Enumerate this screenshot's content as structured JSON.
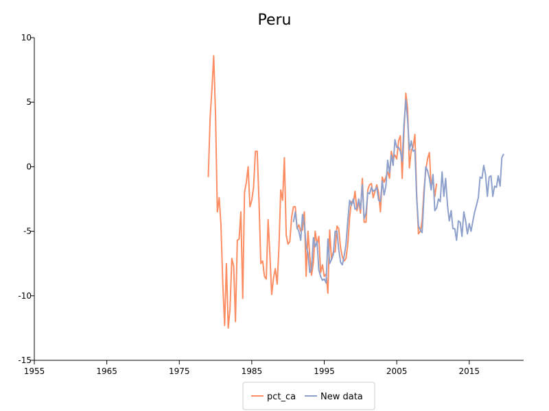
{
  "chart_data": {
    "type": "line",
    "title": "Peru",
    "xlabel": "",
    "ylabel": "",
    "xlim": [
      1955,
      2022.5
    ],
    "ylim": [
      -15,
      10
    ],
    "x_ticks": [
      "1955",
      "1965",
      "1975",
      "1985",
      "1995",
      "2005",
      "2015"
    ],
    "y_ticks": [
      "10",
      "5",
      "0",
      "-5",
      "-10",
      "-15"
    ],
    "grid": false,
    "legend_position": "bottom-center",
    "series": [
      {
        "name": "pct_ca",
        "color": "#fc8d62",
        "points": [
          [
            1979.0,
            -0.8
          ],
          [
            1979.25,
            3.8
          ],
          [
            1979.5,
            6.0
          ],
          [
            1979.75,
            8.6
          ],
          [
            1980.0,
            4.0
          ],
          [
            1980.25,
            -3.5
          ],
          [
            1980.5,
            -2.4
          ],
          [
            1980.75,
            -4.5
          ],
          [
            1981.0,
            -9.0
          ],
          [
            1981.25,
            -12.3
          ],
          [
            1981.5,
            -7.5
          ],
          [
            1981.75,
            -12.5
          ],
          [
            1982.0,
            -11.0
          ],
          [
            1982.25,
            -7.1
          ],
          [
            1982.5,
            -7.7
          ],
          [
            1982.75,
            -12.0
          ],
          [
            1983.0,
            -5.7
          ],
          [
            1983.25,
            -5.6
          ],
          [
            1983.5,
            -3.5
          ],
          [
            1983.75,
            -10.2
          ],
          [
            1984.0,
            -2.0
          ],
          [
            1984.25,
            -1.2
          ],
          [
            1984.5,
            0.0
          ],
          [
            1984.75,
            -3.1
          ],
          [
            1985.0,
            -2.6
          ],
          [
            1985.25,
            -1.6
          ],
          [
            1985.5,
            1.2
          ],
          [
            1985.75,
            1.2
          ],
          [
            1986.0,
            -2.8
          ],
          [
            1986.25,
            -7.5
          ],
          [
            1986.5,
            -7.3
          ],
          [
            1986.75,
            -8.5
          ],
          [
            1987.0,
            -8.7
          ],
          [
            1987.25,
            -4.1
          ],
          [
            1987.5,
            -6.8
          ],
          [
            1987.75,
            -9.9
          ],
          [
            1988.0,
            -8.6
          ],
          [
            1988.25,
            -7.9
          ],
          [
            1988.5,
            -9.1
          ],
          [
            1988.75,
            -6.2
          ],
          [
            1989.0,
            -1.8
          ],
          [
            1989.25,
            -2.6
          ],
          [
            1989.5,
            0.7
          ],
          [
            1989.75,
            -5.3
          ],
          [
            1990.0,
            -6.0
          ],
          [
            1990.25,
            -5.8
          ],
          [
            1990.5,
            -3.9
          ],
          [
            1990.75,
            -3.1
          ],
          [
            1991.0,
            -3.1
          ],
          [
            1991.25,
            -4.8
          ],
          [
            1991.5,
            -4.5
          ],
          [
            1991.75,
            -5.0
          ],
          [
            1992.0,
            -4.9
          ],
          [
            1992.25,
            -3.5
          ],
          [
            1992.5,
            -8.5
          ],
          [
            1992.75,
            -5.0
          ],
          [
            1993.0,
            -6.9
          ],
          [
            1993.25,
            -8.4
          ],
          [
            1993.5,
            -7.4
          ],
          [
            1993.75,
            -5.0
          ],
          [
            1994.0,
            -6.0
          ],
          [
            1994.25,
            -5.4
          ],
          [
            1994.5,
            -8.2
          ],
          [
            1994.75,
            -7.6
          ],
          [
            1995.0,
            -8.5
          ],
          [
            1995.25,
            -8.3
          ],
          [
            1995.5,
            -9.8
          ],
          [
            1995.75,
            -4.9
          ],
          [
            1996.0,
            -7.2
          ],
          [
            1996.25,
            -6.6
          ],
          [
            1996.5,
            -6.6
          ],
          [
            1996.75,
            -4.6
          ],
          [
            1997.0,
            -4.8
          ],
          [
            1997.25,
            -6.3
          ],
          [
            1997.5,
            -7.0
          ],
          [
            1997.75,
            -7.3
          ],
          [
            1998.0,
            -7.1
          ],
          [
            1998.25,
            -6.0
          ],
          [
            1998.5,
            -3.9
          ],
          [
            1998.75,
            -2.7
          ],
          [
            1999.0,
            -2.8
          ],
          [
            1999.25,
            -1.9
          ],
          [
            1999.5,
            -3.4
          ],
          [
            1999.75,
            -2.7
          ],
          [
            2000.0,
            -3.6
          ],
          [
            2000.25,
            -0.9
          ],
          [
            2000.5,
            -4.3
          ],
          [
            2000.75,
            -4.3
          ],
          [
            2001.0,
            -1.8
          ],
          [
            2001.25,
            -1.4
          ],
          [
            2001.5,
            -1.3
          ],
          [
            2001.75,
            -2.4
          ],
          [
            2002.0,
            -1.9
          ],
          [
            2002.25,
            -1.4
          ],
          [
            2002.5,
            -2.0
          ],
          [
            2002.75,
            -3.5
          ],
          [
            2003.0,
            -0.8
          ],
          [
            2003.25,
            -1.2
          ],
          [
            2003.5,
            -0.8
          ],
          [
            2003.75,
            -0.4
          ],
          [
            2004.0,
            -0.9
          ],
          [
            2004.25,
            1.2
          ],
          [
            2004.5,
            0.6
          ],
          [
            2004.75,
            0.9
          ],
          [
            2005.0,
            0.6
          ],
          [
            2005.25,
            2.0
          ],
          [
            2005.5,
            2.4
          ],
          [
            2005.75,
            -0.9
          ],
          [
            2006.0,
            2.7
          ],
          [
            2006.25,
            5.7
          ],
          [
            2006.5,
            4.5
          ],
          [
            2006.75,
            -0.1
          ],
          [
            2007.0,
            1.3
          ],
          [
            2007.25,
            1.5
          ],
          [
            2007.5,
            2.5
          ],
          [
            2007.75,
            -2.2
          ],
          [
            2008.0,
            -5.2
          ],
          [
            2008.25,
            -5.0
          ],
          [
            2008.5,
            -4.2
          ],
          [
            2008.75,
            -1.8
          ],
          [
            2009.0,
            -0.3
          ],
          [
            2009.25,
            0.6
          ],
          [
            2009.5,
            1.1
          ],
          [
            2009.75,
            -1.6
          ],
          [
            2010.0,
            -0.9
          ],
          [
            2010.25,
            -2.3
          ],
          [
            2010.5,
            -1.3
          ]
        ]
      },
      {
        "name": "New data",
        "color": "#8da0cb",
        "points": [
          [
            1990.75,
            -4.3
          ],
          [
            1991.0,
            -3.5
          ],
          [
            1991.25,
            -4.7
          ],
          [
            1991.5,
            -5.0
          ],
          [
            1991.75,
            -5.7
          ],
          [
            1992.0,
            -3.7
          ],
          [
            1992.25,
            -4.4
          ],
          [
            1992.5,
            -6.2
          ],
          [
            1992.75,
            -6.7
          ],
          [
            1993.0,
            -8.2
          ],
          [
            1993.25,
            -7.9
          ],
          [
            1993.5,
            -5.5
          ],
          [
            1993.75,
            -6.2
          ],
          [
            1994.0,
            -5.8
          ],
          [
            1994.25,
            -8.0
          ],
          [
            1994.5,
            -8.5
          ],
          [
            1994.75,
            -8.8
          ],
          [
            1995.0,
            -8.7
          ],
          [
            1995.25,
            -9.0
          ],
          [
            1995.5,
            -5.6
          ],
          [
            1995.75,
            -7.5
          ],
          [
            1996.0,
            -7.2
          ],
          [
            1996.25,
            -6.8
          ],
          [
            1996.5,
            -5.0
          ],
          [
            1996.75,
            -5.0
          ],
          [
            1997.0,
            -6.4
          ],
          [
            1997.25,
            -7.4
          ],
          [
            1997.5,
            -7.6
          ],
          [
            1997.75,
            -6.9
          ],
          [
            1998.0,
            -6.0
          ],
          [
            1998.25,
            -4.2
          ],
          [
            1998.5,
            -2.6
          ],
          [
            1998.75,
            -3.0
          ],
          [
            1999.0,
            -2.5
          ],
          [
            1999.25,
            -3.3
          ],
          [
            1999.5,
            -3.2
          ],
          [
            1999.75,
            -2.5
          ],
          [
            2000.0,
            -3.3
          ],
          [
            2000.25,
            -1.4
          ],
          [
            2000.5,
            -4.0
          ],
          [
            2000.75,
            -3.6
          ],
          [
            2001.0,
            -2.0
          ],
          [
            2001.25,
            -2.1
          ],
          [
            2001.5,
            -1.6
          ],
          [
            2001.75,
            -1.9
          ],
          [
            2002.0,
            -1.8
          ],
          [
            2002.25,
            -1.6
          ],
          [
            2002.5,
            -2.6
          ],
          [
            2002.75,
            -2.7
          ],
          [
            2003.0,
            -1.1
          ],
          [
            2003.25,
            -2.2
          ],
          [
            2003.5,
            -1.5
          ],
          [
            2003.75,
            0.5
          ],
          [
            2004.0,
            -0.5
          ],
          [
            2004.25,
            0.9
          ],
          [
            2004.5,
            0.1
          ],
          [
            2004.75,
            2.1
          ],
          [
            2005.0,
            1.5
          ],
          [
            2005.25,
            1.5
          ],
          [
            2005.5,
            1.2
          ],
          [
            2005.75,
            0.4
          ],
          [
            2006.0,
            3.3
          ],
          [
            2006.25,
            5.2
          ],
          [
            2006.5,
            3.6
          ],
          [
            2006.75,
            1.3
          ],
          [
            2007.0,
            2.0
          ],
          [
            2007.25,
            1.2
          ],
          [
            2007.5,
            1.3
          ],
          [
            2007.75,
            -2.4
          ],
          [
            2008.0,
            -4.6
          ],
          [
            2008.25,
            -4.9
          ],
          [
            2008.5,
            -5.1
          ],
          [
            2008.75,
            -2.3
          ],
          [
            2009.0,
            0.0
          ],
          [
            2009.25,
            -0.3
          ],
          [
            2009.5,
            -0.9
          ],
          [
            2009.75,
            -1.8
          ],
          [
            2010.0,
            -0.6
          ],
          [
            2010.25,
            -3.4
          ],
          [
            2010.5,
            -3.2
          ],
          [
            2010.75,
            -2.5
          ],
          [
            2011.0,
            -2.7
          ],
          [
            2011.25,
            -0.4
          ],
          [
            2011.5,
            -2.3
          ],
          [
            2011.75,
            -0.9
          ],
          [
            2012.0,
            -3.0
          ],
          [
            2012.25,
            -4.2
          ],
          [
            2012.5,
            -3.4
          ],
          [
            2012.75,
            -4.8
          ],
          [
            2013.0,
            -4.8
          ],
          [
            2013.25,
            -5.7
          ],
          [
            2013.5,
            -4.2
          ],
          [
            2013.75,
            -4.3
          ],
          [
            2014.0,
            -5.4
          ],
          [
            2014.25,
            -3.5
          ],
          [
            2014.5,
            -4.2
          ],
          [
            2014.75,
            -5.2
          ],
          [
            2015.0,
            -4.4
          ],
          [
            2015.25,
            -5.0
          ],
          [
            2015.5,
            -4.2
          ],
          [
            2015.75,
            -3.5
          ],
          [
            2016.0,
            -3.0
          ],
          [
            2016.25,
            -2.4
          ],
          [
            2016.5,
            -0.8
          ],
          [
            2016.75,
            -0.9
          ],
          [
            2017.0,
            0.1
          ],
          [
            2017.25,
            -0.6
          ],
          [
            2017.5,
            -2.3
          ],
          [
            2017.75,
            -0.8
          ],
          [
            2018.0,
            -0.7
          ],
          [
            2018.25,
            -2.3
          ],
          [
            2018.5,
            -1.5
          ],
          [
            2018.75,
            -1.6
          ],
          [
            2019.0,
            -0.7
          ],
          [
            2019.25,
            -1.5
          ],
          [
            2019.5,
            0.7
          ],
          [
            2019.75,
            1.0
          ]
        ]
      }
    ]
  }
}
